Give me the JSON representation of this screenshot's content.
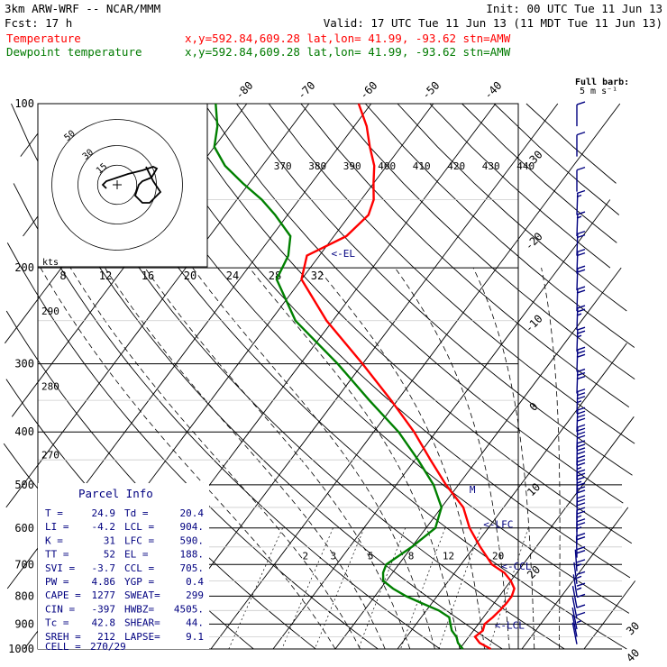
{
  "header": {
    "line1_left": "3km ARW-WRF -- NCAR/MMM",
    "line1_right": "Init: 00 UTC Tue 11 Jun 13",
    "line2_left": "Fcst:   17 h",
    "line2_right": "Valid: 17 UTC Tue 11 Jun 13 (11 MDT Tue 11 Jun 13)",
    "temp_label": "Temperature",
    "temp_info": "x,y=592.84,609.28   lat,lon= 41.99, -93.62  stn=AMW",
    "dew_label": "Dewpoint temperature",
    "dew_info": "x,y=592.84,609.28   lat,lon= 41.99, -93.62  stn=AMW"
  },
  "colors": {
    "temperature": "#ff0000",
    "dewpoint": "#008000",
    "wind": "#000080",
    "hodograph": "#000000"
  },
  "chart_data": {
    "type": "line",
    "chart_kind": "skew-T log-P sounding",
    "pressure_axis": {
      "label_values": [
        "100",
        "200",
        "300",
        "400",
        "500",
        "600",
        "700",
        "800",
        "900",
        "1000"
      ],
      "ylim": [
        100,
        1000
      ],
      "scale": "log"
    },
    "temperature_axis": {
      "labels": [
        "-80",
        "-70",
        "-60",
        "-50",
        "-40",
        "-30",
        "-20",
        "-10",
        "0",
        "10",
        "20",
        "30",
        "40"
      ]
    },
    "theta_labels": [
      "370",
      "380",
      "390",
      "400",
      "410",
      "420",
      "430",
      "440"
    ],
    "theta_side_labels": [
      "290",
      "280",
      "270"
    ],
    "mixing_ratio_labels": [
      "2",
      "3",
      "5",
      "8",
      "12",
      "20"
    ],
    "series": [
      {
        "name": "Temperature",
        "points": [
          [
            1000,
            25.0
          ],
          [
            975,
            22.5
          ],
          [
            950,
            21.0
          ],
          [
            925,
            21.5
          ],
          [
            900,
            21.0
          ],
          [
            875,
            21.5
          ],
          [
            850,
            21.8
          ],
          [
            825,
            22.0
          ],
          [
            800,
            22.0
          ],
          [
            775,
            21.5
          ],
          [
            750,
            20.0
          ],
          [
            725,
            18.0
          ],
          [
            700,
            15.0
          ],
          [
            650,
            11.0
          ],
          [
            600,
            7.0
          ],
          [
            550,
            3.5
          ],
          [
            500,
            -2.0
          ],
          [
            450,
            -7.5
          ],
          [
            400,
            -13.5
          ],
          [
            350,
            -21.0
          ],
          [
            300,
            -30.0
          ],
          [
            250,
            -41.0
          ],
          [
            210,
            -50.0
          ],
          [
            190,
            -52.0
          ],
          [
            175,
            -48.0
          ],
          [
            160,
            -47.0
          ],
          [
            150,
            -48.0
          ],
          [
            140,
            -50.0
          ],
          [
            130,
            -52.0
          ],
          [
            120,
            -55.0
          ],
          [
            110,
            -58.0
          ],
          [
            100,
            -62.0
          ]
        ]
      },
      {
        "name": "Dewpoint temperature",
        "points": [
          [
            1000,
            20.5
          ],
          [
            975,
            19.0
          ],
          [
            950,
            18.0
          ],
          [
            925,
            16.5
          ],
          [
            900,
            15.5
          ],
          [
            875,
            14.5
          ],
          [
            850,
            12.0
          ],
          [
            825,
            8.5
          ],
          [
            800,
            5.0
          ],
          [
            775,
            2.0
          ],
          [
            750,
            -0.5
          ],
          [
            725,
            -1.5
          ],
          [
            700,
            -2.0
          ],
          [
            650,
            0.0
          ],
          [
            600,
            1.5
          ],
          [
            550,
            0.0
          ],
          [
            500,
            -4.0
          ],
          [
            450,
            -9.5
          ],
          [
            400,
            -16.0
          ],
          [
            350,
            -24.5
          ],
          [
            300,
            -34.0
          ],
          [
            250,
            -46.0
          ],
          [
            210,
            -54.0
          ],
          [
            190,
            -55.0
          ],
          [
            175,
            -57.0
          ],
          [
            160,
            -62.0
          ],
          [
            150,
            -66.0
          ],
          [
            140,
            -71.0
          ],
          [
            130,
            -76.0
          ],
          [
            120,
            -80.0
          ],
          [
            110,
            -82.0
          ],
          [
            100,
            -85.0
          ]
        ]
      }
    ],
    "levels": [
      {
        "name": "EL",
        "label": "<-EL",
        "pressure": 188
      },
      {
        "name": "LFC",
        "label": "<-LFC",
        "pressure": 590
      },
      {
        "name": "CCL",
        "label": "<-CCL",
        "pressure": 705
      },
      {
        "name": "LCL",
        "label": "<-LCL",
        "pressure": 904
      }
    ],
    "freezing_marker": {
      "label": "M",
      "pressure": 510
    },
    "hodograph": {
      "units_label": "kts",
      "ring_labels": [
        "15",
        "30",
        "50"
      ],
      "storm_motion_label": "270/29",
      "points": [
        [
          -6,
          -2
        ],
        [
          -8,
          0
        ],
        [
          -6,
          2
        ],
        [
          0,
          4
        ],
        [
          6,
          6
        ],
        [
          14,
          8
        ],
        [
          20,
          10
        ],
        [
          22,
          9
        ],
        [
          19,
          4
        ],
        [
          14,
          2
        ],
        [
          12,
          0
        ],
        [
          10,
          -6
        ],
        [
          14,
          -10
        ],
        [
          18,
          -10
        ],
        [
          24,
          -4
        ],
        [
          20,
          2
        ],
        [
          16,
          10
        ]
      ]
    },
    "ticks_kts_labels": [
      "8",
      "12",
      "16",
      "20",
      "24",
      "28",
      "32"
    ],
    "wind_barb_legend": {
      "title": "Full barb:",
      "value": "5 m s⁻¹"
    },
    "wind_barbs": [
      {
        "p": 110,
        "spd": 6,
        "dir": 270
      },
      {
        "p": 125,
        "spd": 6,
        "dir": 270
      },
      {
        "p": 145,
        "spd": 6,
        "dir": 270
      },
      {
        "p": 160,
        "spd": 8,
        "dir": 280
      },
      {
        "p": 175,
        "spd": 8,
        "dir": 280
      },
      {
        "p": 190,
        "spd": 10,
        "dir": 280
      },
      {
        "p": 205,
        "spd": 10,
        "dir": 280
      },
      {
        "p": 220,
        "spd": 12,
        "dir": 280
      },
      {
        "p": 240,
        "spd": 12,
        "dir": 280
      },
      {
        "p": 260,
        "spd": 14,
        "dir": 280
      },
      {
        "p": 285,
        "spd": 14,
        "dir": 280
      },
      {
        "p": 310,
        "spd": 16,
        "dir": 280
      },
      {
        "p": 340,
        "spd": 16,
        "dir": 280
      },
      {
        "p": 370,
        "spd": 18,
        "dir": 280
      },
      {
        "p": 400,
        "spd": 20,
        "dir": 280
      },
      {
        "p": 430,
        "spd": 20,
        "dir": 280
      },
      {
        "p": 460,
        "spd": 20,
        "dir": 275
      },
      {
        "p": 490,
        "spd": 18,
        "dir": 275
      },
      {
        "p": 520,
        "spd": 18,
        "dir": 275
      },
      {
        "p": 550,
        "spd": 16,
        "dir": 275
      },
      {
        "p": 580,
        "spd": 16,
        "dir": 275
      },
      {
        "p": 610,
        "spd": 14,
        "dir": 270
      },
      {
        "p": 640,
        "spd": 14,
        "dir": 270
      },
      {
        "p": 680,
        "spd": 12,
        "dir": 265
      },
      {
        "p": 720,
        "spd": 10,
        "dir": 250
      },
      {
        "p": 760,
        "spd": 8,
        "dir": 230
      },
      {
        "p": 800,
        "spd": 8,
        "dir": 220
      },
      {
        "p": 840,
        "spd": 8,
        "dir": 200
      },
      {
        "p": 880,
        "spd": 6,
        "dir": 190
      },
      {
        "p": 920,
        "spd": 6,
        "dir": 180
      },
      {
        "p": 950,
        "spd": 5,
        "dir": 180
      },
      {
        "p": 980,
        "spd": 4,
        "dir": 170
      }
    ]
  },
  "parcel_info": {
    "title": "Parcel Info",
    "rows": [
      [
        "T   =",
        "24.9",
        "Td =",
        "20.4"
      ],
      [
        "LI  =",
        "-4.2",
        "LCL =",
        "904."
      ],
      [
        "K   =",
        "31",
        "LFC =",
        "590."
      ],
      [
        "TT  =",
        "52",
        "EL  =",
        "188."
      ],
      [
        "SVI =",
        "-3.7",
        "CCL =",
        "705."
      ],
      [
        "PW  =",
        "4.86",
        "YGP =",
        "0.4"
      ],
      [
        "CAPE =",
        "1277",
        "SWEAT=",
        "299"
      ],
      [
        "CIN =",
        "-397",
        "HWBZ=",
        "4505."
      ],
      [
        "Tc  =",
        "42.8",
        "SHEAR=",
        "44."
      ],
      [
        "SREH =",
        "212",
        "LAPSE=",
        "9.1"
      ]
    ],
    "cell_label": "CELL =",
    "cell_value": "270/29"
  }
}
